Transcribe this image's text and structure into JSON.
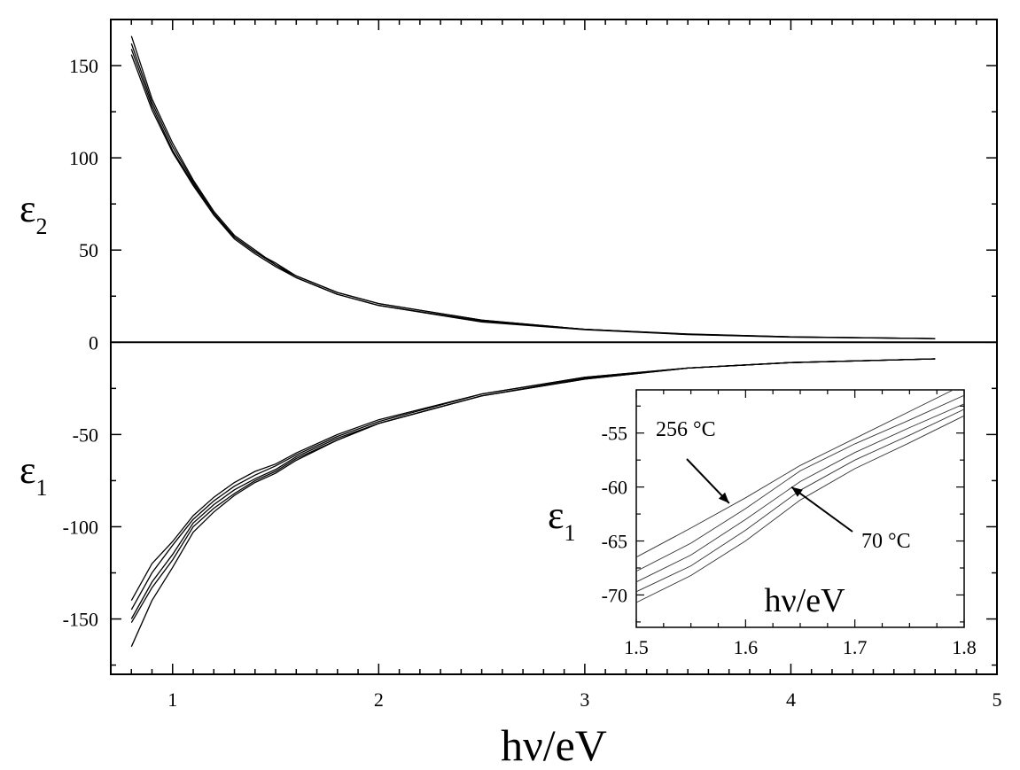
{
  "chart_data": [
    {
      "type": "line",
      "title": "",
      "xlabel": "hν/eV",
      "ylabel_upper": {
        "base": "ε",
        "sub": "2"
      },
      "ylabel_lower": {
        "base": "ε",
        "sub": "1"
      },
      "xlim": [
        0.7,
        5
      ],
      "ylim": [
        -180,
        175
      ],
      "xticks": [
        1,
        2,
        3,
        4,
        5
      ],
      "xtick_labels": [
        "1",
        "2",
        "3",
        "4",
        "5"
      ],
      "yticks": [
        -150,
        -100,
        -50,
        0,
        50,
        100,
        150
      ],
      "ytick_labels": [
        "-150",
        "-100",
        "-50",
        "0",
        "50",
        "100",
        "150"
      ],
      "zero_line": true,
      "grid": false,
      "legend": "none",
      "series": [
        {
          "group": "eps2",
          "x": [
            0.8,
            0.9,
            1.0,
            1.1,
            1.2,
            1.3,
            1.4,
            1.5,
            1.6,
            1.8,
            2.0,
            2.5,
            3.0,
            3.5,
            4.0,
            4.7
          ],
          "y": [
            166,
            132,
            108,
            88,
            71,
            58,
            50,
            42,
            36,
            27,
            21,
            12,
            7,
            4.5,
            3,
            2
          ]
        },
        {
          "group": "eps2",
          "x": [
            0.8,
            0.9,
            1.0,
            1.1,
            1.2,
            1.3,
            1.4,
            1.5,
            1.6,
            1.8,
            2.0,
            2.5,
            3.0,
            3.5,
            4.0,
            4.7
          ],
          "y": [
            162,
            130,
            106,
            87,
            70,
            57,
            49,
            42,
            35,
            26,
            20,
            11.5,
            7,
            4.3,
            2.9,
            2
          ]
        },
        {
          "group": "eps2",
          "x": [
            0.8,
            0.9,
            1.0,
            1.1,
            1.2,
            1.3,
            1.4,
            1.5,
            1.6,
            1.8,
            2.0,
            2.5,
            3.0,
            3.5,
            4.0,
            4.7
          ],
          "y": [
            159,
            128,
            104,
            86,
            69,
            56,
            48,
            41,
            35,
            26,
            20,
            11,
            6.8,
            4.2,
            2.8,
            2
          ]
        },
        {
          "group": "eps2",
          "x": [
            0.8,
            0.9,
            1.0,
            1.1,
            1.2,
            1.3,
            1.4,
            1.5,
            1.6,
            1.8,
            2.0,
            2.5,
            3.0,
            3.5,
            4.0,
            4.7
          ],
          "y": [
            156,
            126,
            103,
            85,
            69,
            57,
            49,
            43,
            36,
            27,
            21,
            12,
            7,
            4.4,
            3,
            2
          ]
        },
        {
          "group": "eps1",
          "x": [
            0.8,
            0.9,
            1.0,
            1.1,
            1.2,
            1.3,
            1.4,
            1.5,
            1.6,
            1.8,
            2.0,
            2.5,
            3.0,
            3.5,
            4.0,
            4.7
          ],
          "y": [
            -140,
            -120,
            -108,
            -94,
            -84,
            -76,
            -70,
            -66,
            -60,
            -50,
            -42,
            -28,
            -19,
            -14,
            -11,
            -9
          ]
        },
        {
          "group": "eps1",
          "x": [
            0.8,
            0.9,
            1.0,
            1.1,
            1.2,
            1.3,
            1.4,
            1.5,
            1.6,
            1.8,
            2.0,
            2.5,
            3.0,
            3.5,
            4.0,
            4.7
          ],
          "y": [
            -145,
            -125,
            -110,
            -96,
            -86,
            -78,
            -72,
            -67,
            -61,
            -51,
            -43,
            -28,
            -19,
            -14,
            -11,
            -9
          ]
        },
        {
          "group": "eps1",
          "x": [
            0.8,
            0.9,
            1.0,
            1.1,
            1.2,
            1.3,
            1.4,
            1.5,
            1.6,
            1.8,
            2.0,
            2.5,
            3.0,
            3.5,
            4.0,
            4.7
          ],
          "y": [
            -150,
            -130,
            -115,
            -98,
            -88,
            -80,
            -74,
            -69,
            -62,
            -52,
            -44,
            -29,
            -19.5,
            -14,
            -11,
            -9
          ]
        },
        {
          "group": "eps1",
          "x": [
            0.8,
            0.9,
            1.0,
            1.1,
            1.2,
            1.3,
            1.4,
            1.5,
            1.6,
            1.8,
            2.0,
            2.5,
            3.0,
            3.5,
            4.0,
            4.7
          ],
          "y": [
            -152,
            -133,
            -118,
            -100,
            -90,
            -82,
            -75,
            -70,
            -63,
            -53,
            -44,
            -29,
            -20,
            -14,
            -11,
            -9
          ]
        },
        {
          "group": "eps1",
          "x": [
            0.8,
            0.9,
            1.0,
            1.1,
            1.2,
            1.3,
            1.4,
            1.5,
            1.6,
            1.8,
            2.0,
            2.5,
            3.0,
            3.5,
            4.0,
            4.7
          ],
          "y": [
            -165,
            -140,
            -122,
            -103,
            -92,
            -83,
            -76,
            -71,
            -64,
            -53,
            -44,
            -29,
            -20,
            -14,
            -11,
            -9
          ]
        }
      ]
    },
    {
      "type": "line",
      "role": "inset",
      "title": "",
      "xlabel": "hν/eV",
      "ylabel": {
        "base": "ε",
        "sub": "1"
      },
      "xlim": [
        1.5,
        1.8
      ],
      "ylim": [
        -73,
        -51
      ],
      "xticks": [
        1.5,
        1.6,
        1.7,
        1.8
      ],
      "xtick_labels": [
        "1.5",
        "1.6",
        "1.7",
        "1.8"
      ],
      "yticks": [
        -70,
        -65,
        -60,
        -55
      ],
      "ytick_labels": [
        "-70",
        "-65",
        "-60",
        "-55"
      ],
      "grid": false,
      "legend": "none",
      "annotations": [
        {
          "text": "256 °C",
          "arrow_to": [
            1.585,
            -61.5
          ]
        },
        {
          "text": "70 °C",
          "arrow_to": [
            1.642,
            -60
          ]
        }
      ],
      "series": [
        {
          "x": [
            1.5,
            1.55,
            1.6,
            1.65,
            1.7,
            1.75,
            1.8
          ],
          "y": [
            -66.5,
            -63.8,
            -61.0,
            -58.0,
            -55.5,
            -53.0,
            -50.5
          ]
        },
        {
          "x": [
            1.5,
            1.55,
            1.6,
            1.65,
            1.7,
            1.75,
            1.8
          ],
          "y": [
            -67.8,
            -65.2,
            -62.0,
            -58.5,
            -56.0,
            -53.8,
            -51.5
          ]
        },
        {
          "x": [
            1.5,
            1.55,
            1.6,
            1.65,
            1.7,
            1.75,
            1.8
          ],
          "y": [
            -68.8,
            -66.3,
            -63.0,
            -59.5,
            -56.8,
            -54.5,
            -52.3
          ]
        },
        {
          "x": [
            1.5,
            1.55,
            1.6,
            1.65,
            1.7,
            1.75,
            1.8
          ],
          "y": [
            -69.7,
            -67.3,
            -64.0,
            -60.3,
            -57.5,
            -55.2,
            -52.8
          ]
        },
        {
          "x": [
            1.5,
            1.55,
            1.6,
            1.65,
            1.7,
            1.75,
            1.8
          ],
          "y": [
            -70.7,
            -68.2,
            -65.0,
            -61.2,
            -58.3,
            -55.9,
            -53.4
          ]
        }
      ]
    }
  ]
}
